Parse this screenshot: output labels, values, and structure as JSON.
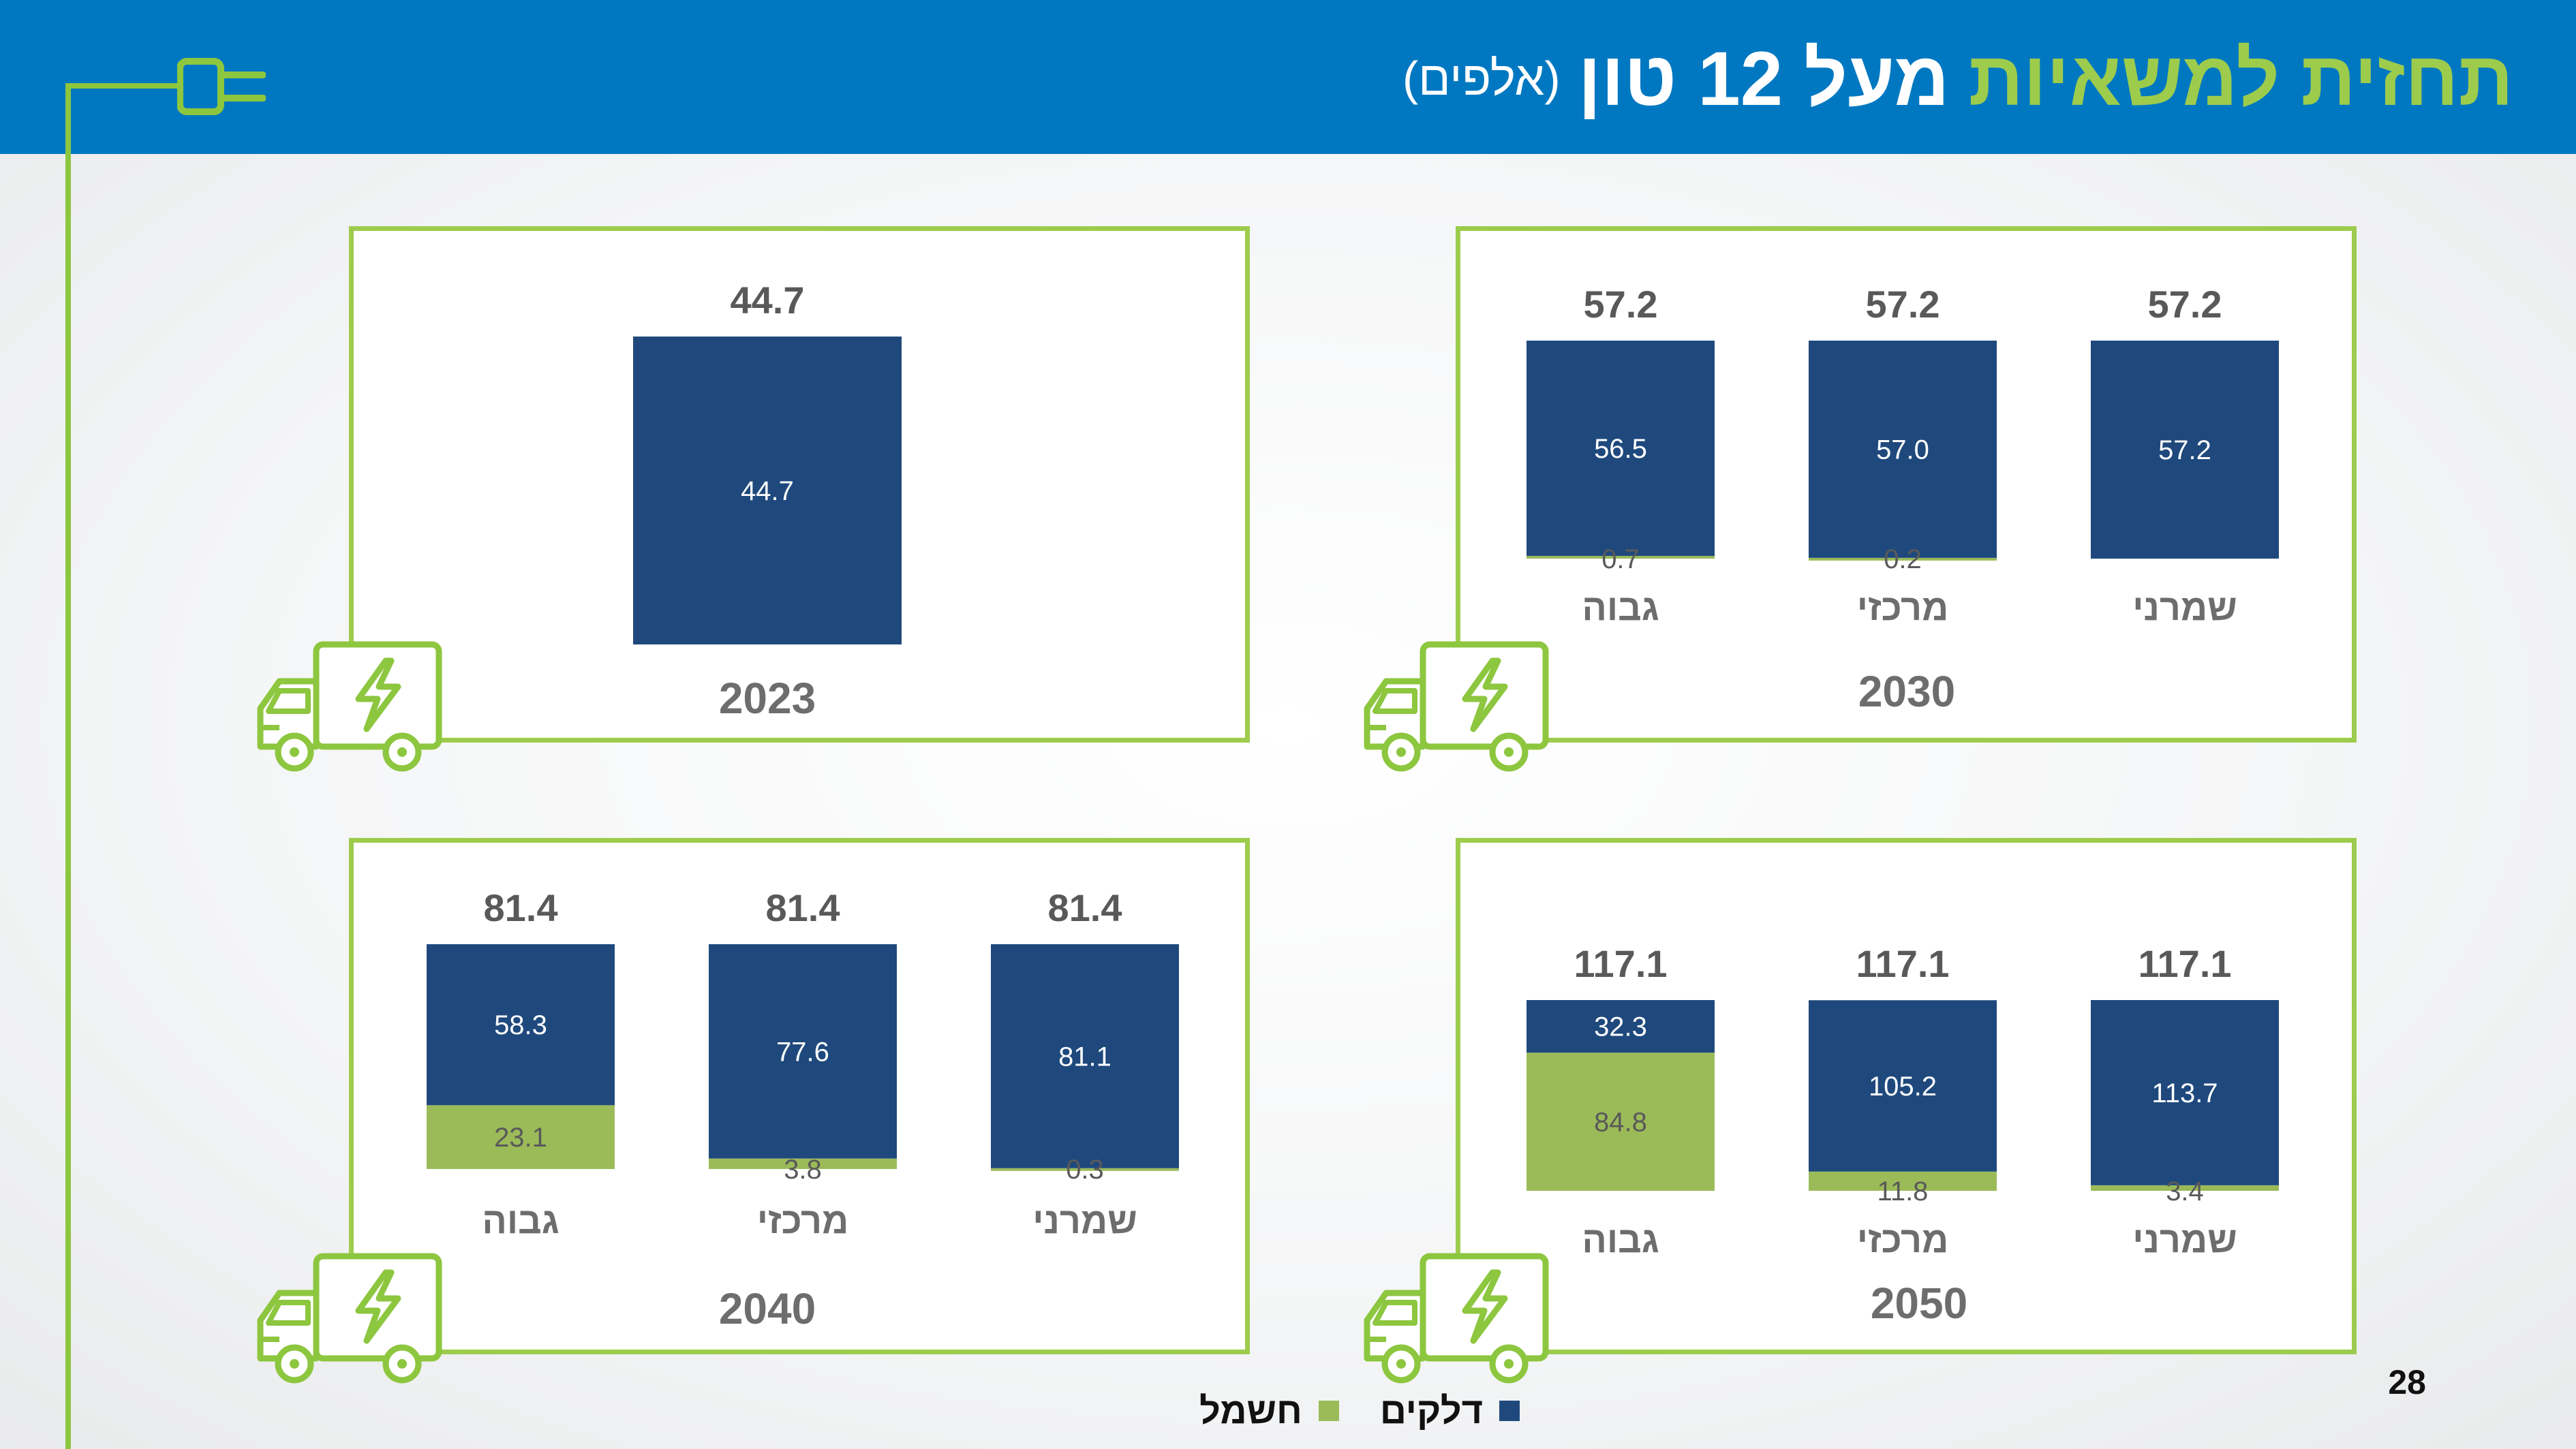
{
  "header": {
    "title_green": "תחזית למשאיות",
    "title_white": "מעל 12 טון",
    "title_sub": "(אלפים)"
  },
  "colors": {
    "fuel": "#1f497d",
    "electric": "#9bbb59",
    "accent": "#8dc63f",
    "header_bg": "#0078c1"
  },
  "legend": {
    "fuel": "דלקים",
    "electric": "חשמל"
  },
  "page_number": "28",
  "icons": {
    "corner": "plug-icon",
    "panel": "electric-truck-icon"
  },
  "chart_data": [
    {
      "type": "bar",
      "stacked": true,
      "title": "2023",
      "categories": [
        ""
      ],
      "series": [
        {
          "name": "חשמל",
          "values": [
            null
          ],
          "labels": [
            ""
          ]
        },
        {
          "name": "דלקים",
          "values": [
            44.7
          ],
          "labels": [
            "44.7"
          ]
        }
      ],
      "totals": [
        "44.7"
      ],
      "ylim": [
        0,
        44.7
      ]
    },
    {
      "type": "bar",
      "stacked": true,
      "title": "2030",
      "categories": [
        "גבוה",
        "מרכזי",
        "שמרני"
      ],
      "series": [
        {
          "name": "חשמל",
          "values": [
            0.7,
            0.2,
            0
          ],
          "labels": [
            "0.7",
            "0.2",
            ""
          ]
        },
        {
          "name": "דלקים",
          "values": [
            56.5,
            57.0,
            57.2
          ],
          "labels": [
            "56.5",
            "57.0",
            "57.2"
          ]
        }
      ],
      "totals": [
        "57.2",
        "57.2",
        "57.2"
      ],
      "ylim": [
        0,
        57.2
      ]
    },
    {
      "type": "bar",
      "stacked": true,
      "title": "2040",
      "categories": [
        "גבוה",
        "מרכזי",
        "שמרני"
      ],
      "series": [
        {
          "name": "חשמל",
          "values": [
            23.1,
            3.8,
            0.3
          ],
          "labels": [
            "23.1",
            "3.8",
            "0.3"
          ]
        },
        {
          "name": "דלקים",
          "values": [
            58.3,
            77.6,
            81.1
          ],
          "labels": [
            "58.3",
            "77.6",
            "81.1"
          ]
        }
      ],
      "totals": [
        "81.4",
        "81.4",
        "81.4"
      ],
      "ylim": [
        0,
        81.4
      ]
    },
    {
      "type": "bar",
      "stacked": true,
      "title": "2050",
      "categories": [
        "גבוה",
        "מרכזי",
        "שמרני"
      ],
      "series": [
        {
          "name": "חשמל",
          "values": [
            84.8,
            11.8,
            3.4
          ],
          "labels": [
            "84.8",
            "11.8",
            "3.4"
          ]
        },
        {
          "name": "דלקים",
          "values": [
            32.3,
            105.2,
            113.7
          ],
          "labels": [
            "32.3",
            "105.2",
            "113.7"
          ]
        }
      ],
      "totals": [
        "117.1",
        "117.1",
        "117.1"
      ],
      "ylim": [
        0,
        117.1
      ]
    }
  ]
}
